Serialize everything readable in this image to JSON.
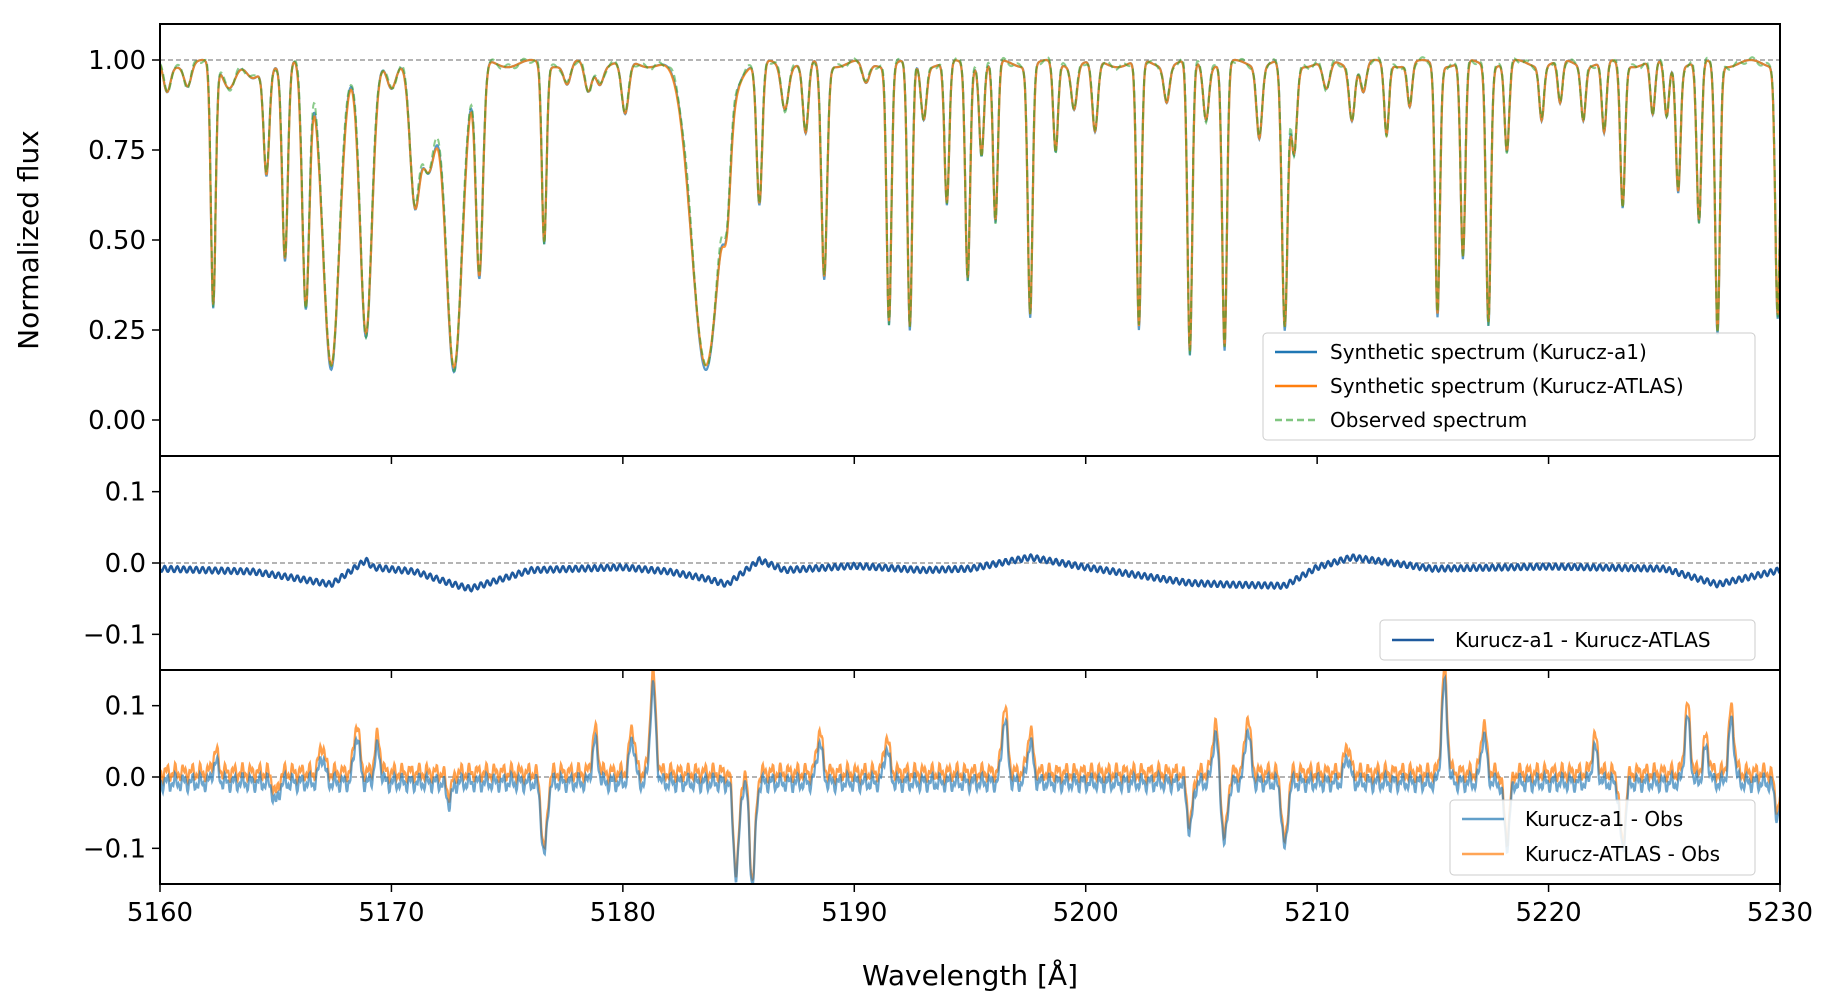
{
  "chart_data": {
    "type": "line",
    "xlabel": "Wavelength [Å]",
    "xlim": [
      5160,
      5230
    ],
    "xticks": [
      "5160",
      "5170",
      "5180",
      "5190",
      "5200",
      "5210",
      "5220",
      "5230"
    ],
    "panels": [
      {
        "id": "spectra",
        "ylabel": "Normalized flux",
        "ylim": [
          -0.1,
          1.1
        ],
        "yticks": [
          "0.00",
          "0.25",
          "0.50",
          "0.75",
          "1.00"
        ],
        "reference_line": 1.0,
        "legend_position": "lower-right",
        "continuum": 0.99,
        "absorption_lines": [
          [
            5160.3,
            0.08,
            0.15
          ],
          [
            5161.2,
            0.06,
            0.15
          ],
          [
            5162.3,
            0.68,
            0.1
          ],
          [
            5163.0,
            0.06,
            0.25
          ],
          [
            5164.0,
            0.05,
            0.3
          ],
          [
            5164.6,
            0.3,
            0.12
          ],
          [
            5165.4,
            0.55,
            0.12
          ],
          [
            5166.3,
            0.68,
            0.15
          ],
          [
            5167.4,
            0.85,
            0.35
          ],
          [
            5168.9,
            0.75,
            0.25
          ],
          [
            5170.0,
            0.08,
            0.2
          ],
          [
            5171.0,
            0.35,
            0.2
          ],
          [
            5171.6,
            0.3,
            0.3
          ],
          [
            5172.7,
            0.85,
            0.35
          ],
          [
            5173.8,
            0.6,
            0.15
          ],
          [
            5176.6,
            0.5,
            0.1
          ],
          [
            5177.6,
            0.06,
            0.15
          ],
          [
            5178.5,
            0.08,
            0.15
          ],
          [
            5179.0,
            0.05,
            0.15
          ],
          [
            5180.1,
            0.15,
            0.15
          ],
          [
            5183.6,
            0.85,
            0.6
          ],
          [
            5184.5,
            0.2,
            0.15
          ],
          [
            5185.9,
            0.4,
            0.12
          ],
          [
            5187.0,
            0.12,
            0.15
          ],
          [
            5187.9,
            0.2,
            0.12
          ],
          [
            5188.7,
            0.6,
            0.12
          ],
          [
            5190.5,
            0.06,
            0.15
          ],
          [
            5191.5,
            0.72,
            0.1
          ],
          [
            5192.4,
            0.75,
            0.1
          ],
          [
            5193.0,
            0.15,
            0.12
          ],
          [
            5194.0,
            0.4,
            0.1
          ],
          [
            5194.9,
            0.6,
            0.1
          ],
          [
            5195.5,
            0.25,
            0.1
          ],
          [
            5196.1,
            0.45,
            0.1
          ],
          [
            5197.6,
            0.7,
            0.1
          ],
          [
            5198.7,
            0.25,
            0.1
          ],
          [
            5199.5,
            0.12,
            0.12
          ],
          [
            5200.4,
            0.2,
            0.12
          ],
          [
            5202.3,
            0.75,
            0.1
          ],
          [
            5203.5,
            0.1,
            0.12
          ],
          [
            5204.5,
            0.82,
            0.1
          ],
          [
            5205.2,
            0.15,
            0.12
          ],
          [
            5206.0,
            0.8,
            0.1
          ],
          [
            5207.5,
            0.2,
            0.12
          ],
          [
            5208.6,
            0.75,
            0.12
          ],
          [
            5209.0,
            0.25,
            0.12
          ],
          [
            5210.4,
            0.08,
            0.15
          ],
          [
            5211.5,
            0.15,
            0.12
          ],
          [
            5212.0,
            0.08,
            0.12
          ],
          [
            5213.0,
            0.2,
            0.1
          ],
          [
            5214.0,
            0.12,
            0.1
          ],
          [
            5215.2,
            0.7,
            0.1
          ],
          [
            5216.3,
            0.55,
            0.1
          ],
          [
            5217.4,
            0.72,
            0.1
          ],
          [
            5218.2,
            0.25,
            0.1
          ],
          [
            5219.7,
            0.15,
            0.1
          ],
          [
            5220.5,
            0.12,
            0.1
          ],
          [
            5221.5,
            0.15,
            0.1
          ],
          [
            5222.4,
            0.2,
            0.1
          ],
          [
            5223.2,
            0.4,
            0.1
          ],
          [
            5224.5,
            0.15,
            0.1
          ],
          [
            5225.1,
            0.15,
            0.1
          ],
          [
            5225.6,
            0.35,
            0.1
          ],
          [
            5226.5,
            0.45,
            0.1
          ],
          [
            5227.3,
            0.75,
            0.1
          ],
          [
            5229.9,
            0.7,
            0.1
          ]
        ],
        "series": [
          {
            "name": "Synthetic spectrum (Kurucz-a1)",
            "color": "#1f77b4",
            "style": "solid"
          },
          {
            "name": "Synthetic spectrum (Kurucz-ATLAS)",
            "color": "#ff7f0e",
            "style": "solid"
          },
          {
            "name": "Observed spectrum",
            "color": "#2ca02c",
            "style": "dashed"
          }
        ]
      },
      {
        "id": "model-difference",
        "ylim": [
          -0.15,
          0.15
        ],
        "yticks": [
          "0.1",
          "0.0",
          "−0.1"
        ],
        "reference_line": 0.0,
        "legend_position": "lower-right",
        "series": [
          {
            "name": "Kurucz-a1 - Kurucz-ATLAS",
            "color": "#1f5a9e",
            "style": "solid",
            "points": [
              [
                5160,
                -0.008
              ],
              [
                5162,
                -0.01
              ],
              [
                5164,
                -0.012
              ],
              [
                5166,
                -0.022
              ],
              [
                5167.4,
                -0.03
              ],
              [
                5168.9,
                0.004
              ],
              [
                5169.2,
                -0.006
              ],
              [
                5171,
                -0.012
              ],
              [
                5172.7,
                -0.03
              ],
              [
                5173.4,
                -0.036
              ],
              [
                5176,
                -0.01
              ],
              [
                5180,
                -0.006
              ],
              [
                5182,
                -0.012
              ],
              [
                5183.6,
                -0.022
              ],
              [
                5184.5,
                -0.03
              ],
              [
                5185.9,
                0.004
              ],
              [
                5187,
                -0.01
              ],
              [
                5190,
                -0.004
              ],
              [
                5193,
                -0.01
              ],
              [
                5195,
                -0.008
              ],
              [
                5197.6,
                0.008
              ],
              [
                5200,
                -0.006
              ],
              [
                5204.5,
                -0.028
              ],
              [
                5206,
                -0.03
              ],
              [
                5208.6,
                -0.032
              ],
              [
                5210,
                -0.006
              ],
              [
                5211.5,
                0.008
              ],
              [
                5215,
                -0.008
              ],
              [
                5220,
                -0.005
              ],
              [
                5225,
                -0.008
              ],
              [
                5227.3,
                -0.03
              ],
              [
                5230,
                -0.01
              ]
            ]
          }
        ]
      },
      {
        "id": "residuals",
        "ylim": [
          -0.15,
          0.15
        ],
        "yticks": [
          "0.1",
          "0.0",
          "−0.1"
        ],
        "reference_line": 0.0,
        "legend_position": "lower-right",
        "series": [
          {
            "name": "Kurucz-a1 - Obs",
            "color": "#1f77b4",
            "style": "solid",
            "features": [
              [
                5162.4,
                0.03
              ],
              [
                5165.0,
                -0.03
              ],
              [
                5167.0,
                0.04
              ],
              [
                5168.5,
                0.07
              ],
              [
                5169.4,
                0.05
              ],
              [
                5172.5,
                -0.03
              ],
              [
                5176.6,
                -0.11
              ],
              [
                5178.8,
                0.06
              ],
              [
                5180.4,
                0.065
              ],
              [
                5181.3,
                0.14
              ],
              [
                5184.9,
                -0.14
              ],
              [
                5185.6,
                -0.15
              ],
              [
                5188.5,
                0.06
              ],
              [
                5191.4,
                0.05
              ],
              [
                5196.5,
                0.095
              ],
              [
                5197.6,
                0.06
              ],
              [
                5204.5,
                -0.07
              ],
              [
                5205.6,
                0.07
              ],
              [
                5206.0,
                -0.09
              ],
              [
                5207.0,
                0.08
              ],
              [
                5208.6,
                -0.1
              ],
              [
                5211.3,
                0.04
              ],
              [
                5215.5,
                0.145
              ],
              [
                5217.2,
                0.07
              ],
              [
                5218.2,
                -0.09
              ],
              [
                5222.0,
                0.05
              ],
              [
                5223.2,
                -0.1
              ],
              [
                5226.0,
                0.095
              ],
              [
                5226.8,
                0.05
              ],
              [
                5227.9,
                0.09
              ],
              [
                5229.9,
                -0.05
              ]
            ]
          },
          {
            "name": "Kurucz-ATLAS - Obs",
            "color": "#ff7f0e",
            "style": "solid"
          }
        ]
      }
    ]
  }
}
